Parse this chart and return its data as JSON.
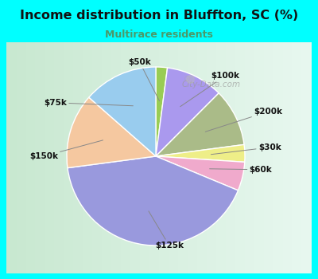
{
  "title": "Income distribution in Bluffton, SC (%)",
  "subtitle": "Multirace residents",
  "title_color": "#111111",
  "subtitle_color": "#4a9a6a",
  "background_outer": "#00ffff",
  "background_inner_top": "#e0f0e8",
  "background_inner_bottom": "#d0eae0",
  "labels": [
    "$50k",
    "$100k",
    "$200k",
    "$30k",
    "$60k",
    "$125k",
    "$150k",
    "$75k"
  ],
  "sizes": [
    2,
    10,
    10,
    3,
    5,
    40,
    13,
    13
  ],
  "colors": [
    "#99cc55",
    "#aa99ee",
    "#aabb88",
    "#eeee88",
    "#f0aacc",
    "#9999dd",
    "#f5c8a0",
    "#99ccee"
  ],
  "startangle": 90,
  "label_offsets": {
    "$50k": [
      -0.18,
      1.05,
      "center"
    ],
    "$100k": [
      0.62,
      0.9,
      "left"
    ],
    "$200k": [
      1.1,
      0.5,
      "left"
    ],
    "$30k": [
      1.15,
      0.1,
      "left"
    ],
    "$60k": [
      1.05,
      -0.15,
      "left"
    ],
    "$125k": [
      0.15,
      -1.0,
      "center"
    ],
    "$150k": [
      -1.1,
      0.0,
      "right"
    ],
    "$75k": [
      -1.0,
      0.6,
      "right"
    ]
  },
  "watermark": "City-Data.com"
}
